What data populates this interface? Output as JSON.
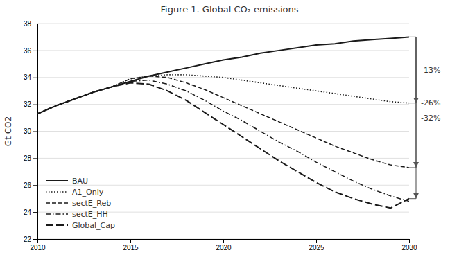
{
  "chart_data": {
    "type": "line",
    "title": "Figure 1. Global CO₂ emissions",
    "ylabel": "Gt CO2",
    "x": [
      2010,
      2011,
      2012,
      2013,
      2014,
      2015,
      2016,
      2017,
      2018,
      2019,
      2020,
      2021,
      2022,
      2023,
      2024,
      2025,
      2026,
      2027,
      2028,
      2029,
      2030
    ],
    "series": [
      {
        "name": "BAU",
        "color": "#1a1a1a",
        "line_style": "solid",
        "values": [
          31.3,
          31.9,
          32.4,
          32.9,
          33.3,
          33.7,
          34.1,
          34.4,
          34.7,
          35.0,
          35.3,
          35.5,
          35.8,
          36.0,
          36.2,
          36.4,
          36.5,
          36.7,
          36.8,
          36.9,
          37.0
        ]
      },
      {
        "name": "A1_Only",
        "color": "#1a1a1a",
        "line_style": "dotted",
        "values": [
          31.3,
          31.9,
          32.4,
          32.9,
          33.3,
          33.9,
          34.1,
          34.2,
          34.2,
          34.1,
          34.0,
          33.8,
          33.6,
          33.4,
          33.2,
          33.0,
          32.8,
          32.6,
          32.4,
          32.2,
          32.1
        ]
      },
      {
        "name": "sectE_Reb",
        "color": "#1a1a1a",
        "line_style": "dashed",
        "values": [
          31.3,
          31.9,
          32.4,
          32.9,
          33.3,
          33.9,
          34.1,
          34.0,
          33.6,
          33.1,
          32.5,
          31.9,
          31.3,
          30.7,
          30.1,
          29.5,
          28.9,
          28.4,
          27.9,
          27.5,
          27.3
        ]
      },
      {
        "name": "sectE_HH",
        "color": "#1a1a1a",
        "line_style": "dashdot",
        "values": [
          31.3,
          31.9,
          32.4,
          32.9,
          33.3,
          33.7,
          33.8,
          33.5,
          33.0,
          32.3,
          31.5,
          30.8,
          30.0,
          29.2,
          28.5,
          27.7,
          27.0,
          26.3,
          25.7,
          25.2,
          24.8
        ]
      },
      {
        "name": "Global_Cap",
        "color": "#1a1a1a",
        "line_style": "longdash",
        "values": [
          31.3,
          31.9,
          32.4,
          32.9,
          33.3,
          33.6,
          33.5,
          33.0,
          32.3,
          31.4,
          30.5,
          29.6,
          28.7,
          27.8,
          27.0,
          26.2,
          25.5,
          25.0,
          24.6,
          24.3,
          25.0
        ]
      }
    ],
    "xlim": [
      2010,
      2030
    ],
    "ylim": [
      22,
      38
    ],
    "xticks": [
      2010,
      2015,
      2020,
      2025,
      2030
    ],
    "yticks": [
      22,
      24,
      26,
      28,
      30,
      32,
      34,
      36,
      38
    ],
    "grid": true,
    "legend": "lower left",
    "annotations": [
      {
        "text": "-13%",
        "y_start": 37.0,
        "y_end": 32.1
      },
      {
        "text": "-26%",
        "y_start": 37.0,
        "y_end": 27.3
      },
      {
        "text": "-32%",
        "y_start": 37.0,
        "y_end": 25.0
      }
    ]
  }
}
